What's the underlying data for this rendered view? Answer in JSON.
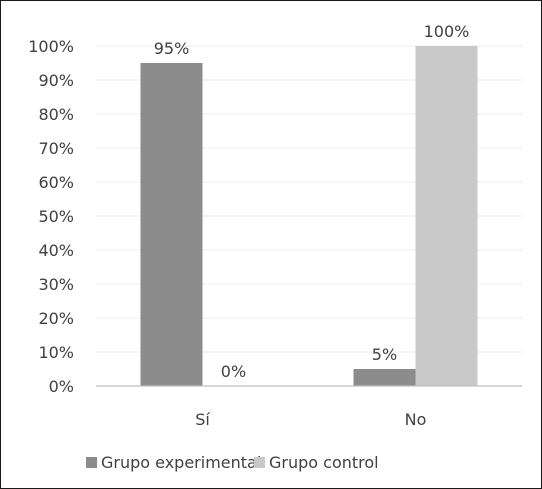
{
  "chart_data": {
    "type": "bar",
    "categories": [
      "Sí",
      "No"
    ],
    "series": [
      {
        "name": "Grupo experimental",
        "values": [
          95,
          5
        ],
        "labels": [
          "95%",
          "5%"
        ],
        "color": "#8c8c8c"
      },
      {
        "name": "Grupo control",
        "values": [
          0,
          100
        ],
        "labels": [
          "0%",
          "100%"
        ],
        "color": "#c9c9c9"
      }
    ],
    "ylim": [
      0,
      100
    ],
    "yticks": [
      "0%",
      "10%",
      "20%",
      "30%",
      "40%",
      "50%",
      "60%",
      "70%",
      "80%",
      "90%",
      "100%"
    ],
    "grid": true,
    "legend": "bottom",
    "title": "",
    "xlabel": "",
    "ylabel": ""
  }
}
